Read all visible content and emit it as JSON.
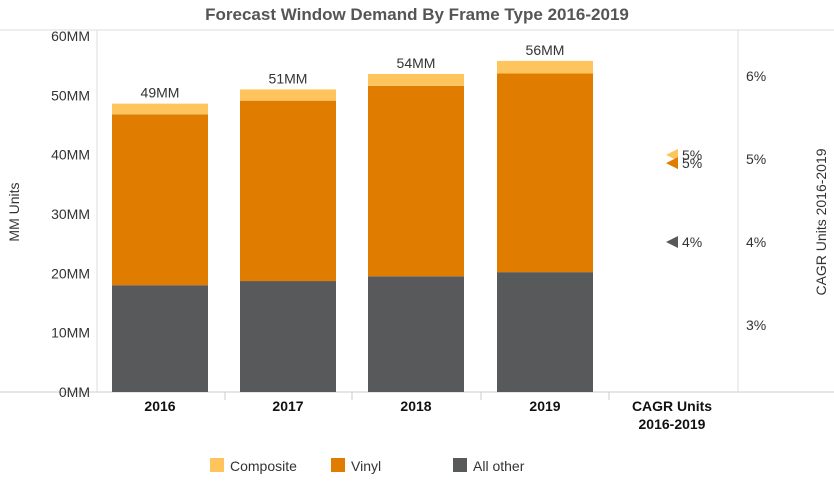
{
  "chart_data": {
    "type": "bar",
    "stacked": true,
    "title": "Forecast Window Demand By Frame Type 2016-2019",
    "ylabel": "MM Units",
    "y2label": "CAGR Units 2016-2019",
    "ylim": [
      0,
      60
    ],
    "yticks": [
      0,
      10,
      20,
      30,
      40,
      50,
      60
    ],
    "ytick_labels": [
      "0MM",
      "10MM",
      "20MM",
      "30MM",
      "40MM",
      "50MM",
      "60MM"
    ],
    "y2ticks": [
      3,
      4,
      5,
      6
    ],
    "y2tick_labels": [
      "3%",
      "4%",
      "5%",
      "6%"
    ],
    "y2lim": [
      2.1,
      6.5
    ],
    "categories": [
      "2016",
      "2017",
      "2018",
      "2019"
    ],
    "extra_category": "CAGR Units\n2016-2019",
    "series": [
      {
        "name": "All other",
        "color": "#58595b",
        "values": [
          18.0,
          18.7,
          19.5,
          20.2
        ]
      },
      {
        "name": "Vinyl",
        "color": "#e07d00",
        "values": [
          28.8,
          30.4,
          32.1,
          33.5
        ]
      },
      {
        "name": "Composite",
        "color": "#ffc45e",
        "values": [
          1.8,
          1.9,
          2.0,
          2.1
        ]
      }
    ],
    "totals": [
      "49MM",
      "51MM",
      "54MM",
      "56MM"
    ],
    "cagr": [
      {
        "series": "Composite",
        "value": 5.05,
        "label": "5%",
        "color": "#ffc45e"
      },
      {
        "series": "Vinyl",
        "value": 4.95,
        "label": "5%",
        "color": "#e07d00"
      },
      {
        "series": "All other",
        "value": 4.0,
        "label": "4%",
        "color": "#58595b"
      }
    ],
    "legend": {
      "placement": "bottom",
      "items": [
        {
          "label": "Composite",
          "color": "#ffc45e"
        },
        {
          "label": "Vinyl",
          "color": "#e07d00"
        },
        {
          "label": "All other",
          "color": "#58595b"
        }
      ]
    },
    "grid": false
  }
}
